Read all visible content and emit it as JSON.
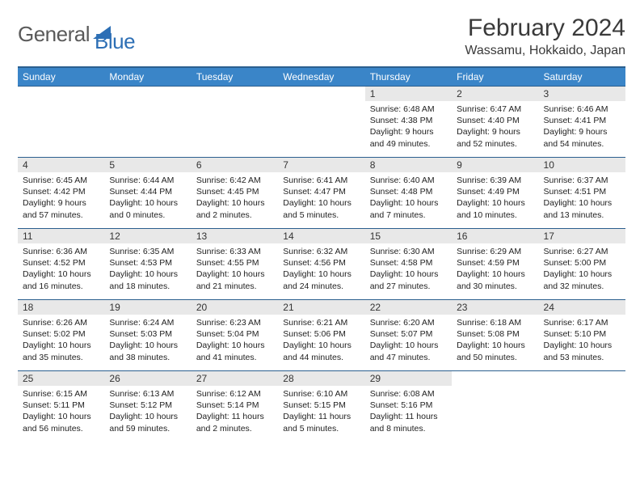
{
  "brand": {
    "part1": "General",
    "part2": "Blue"
  },
  "title": {
    "month": "February 2024",
    "location": "Wassamu, Hokkaido, Japan"
  },
  "weekdays": [
    "Sunday",
    "Monday",
    "Tuesday",
    "Wednesday",
    "Thursday",
    "Friday",
    "Saturday"
  ],
  "colors": {
    "header_bg": "#3a85c8",
    "header_border": "#2b5f8f",
    "daynum_bg": "#e8e8e8"
  },
  "days": [
    {
      "n": "1",
      "sr": "Sunrise: 6:48 AM",
      "ss": "Sunset: 4:38 PM",
      "dl": "Daylight: 9 hours and 49 minutes."
    },
    {
      "n": "2",
      "sr": "Sunrise: 6:47 AM",
      "ss": "Sunset: 4:40 PM",
      "dl": "Daylight: 9 hours and 52 minutes."
    },
    {
      "n": "3",
      "sr": "Sunrise: 6:46 AM",
      "ss": "Sunset: 4:41 PM",
      "dl": "Daylight: 9 hours and 54 minutes."
    },
    {
      "n": "4",
      "sr": "Sunrise: 6:45 AM",
      "ss": "Sunset: 4:42 PM",
      "dl": "Daylight: 9 hours and 57 minutes."
    },
    {
      "n": "5",
      "sr": "Sunrise: 6:44 AM",
      "ss": "Sunset: 4:44 PM",
      "dl": "Daylight: 10 hours and 0 minutes."
    },
    {
      "n": "6",
      "sr": "Sunrise: 6:42 AM",
      "ss": "Sunset: 4:45 PM",
      "dl": "Daylight: 10 hours and 2 minutes."
    },
    {
      "n": "7",
      "sr": "Sunrise: 6:41 AM",
      "ss": "Sunset: 4:47 PM",
      "dl": "Daylight: 10 hours and 5 minutes."
    },
    {
      "n": "8",
      "sr": "Sunrise: 6:40 AM",
      "ss": "Sunset: 4:48 PM",
      "dl": "Daylight: 10 hours and 7 minutes."
    },
    {
      "n": "9",
      "sr": "Sunrise: 6:39 AM",
      "ss": "Sunset: 4:49 PM",
      "dl": "Daylight: 10 hours and 10 minutes."
    },
    {
      "n": "10",
      "sr": "Sunrise: 6:37 AM",
      "ss": "Sunset: 4:51 PM",
      "dl": "Daylight: 10 hours and 13 minutes."
    },
    {
      "n": "11",
      "sr": "Sunrise: 6:36 AM",
      "ss": "Sunset: 4:52 PM",
      "dl": "Daylight: 10 hours and 16 minutes."
    },
    {
      "n": "12",
      "sr": "Sunrise: 6:35 AM",
      "ss": "Sunset: 4:53 PM",
      "dl": "Daylight: 10 hours and 18 minutes."
    },
    {
      "n": "13",
      "sr": "Sunrise: 6:33 AM",
      "ss": "Sunset: 4:55 PM",
      "dl": "Daylight: 10 hours and 21 minutes."
    },
    {
      "n": "14",
      "sr": "Sunrise: 6:32 AM",
      "ss": "Sunset: 4:56 PM",
      "dl": "Daylight: 10 hours and 24 minutes."
    },
    {
      "n": "15",
      "sr": "Sunrise: 6:30 AM",
      "ss": "Sunset: 4:58 PM",
      "dl": "Daylight: 10 hours and 27 minutes."
    },
    {
      "n": "16",
      "sr": "Sunrise: 6:29 AM",
      "ss": "Sunset: 4:59 PM",
      "dl": "Daylight: 10 hours and 30 minutes."
    },
    {
      "n": "17",
      "sr": "Sunrise: 6:27 AM",
      "ss": "Sunset: 5:00 PM",
      "dl": "Daylight: 10 hours and 32 minutes."
    },
    {
      "n": "18",
      "sr": "Sunrise: 6:26 AM",
      "ss": "Sunset: 5:02 PM",
      "dl": "Daylight: 10 hours and 35 minutes."
    },
    {
      "n": "19",
      "sr": "Sunrise: 6:24 AM",
      "ss": "Sunset: 5:03 PM",
      "dl": "Daylight: 10 hours and 38 minutes."
    },
    {
      "n": "20",
      "sr": "Sunrise: 6:23 AM",
      "ss": "Sunset: 5:04 PM",
      "dl": "Daylight: 10 hours and 41 minutes."
    },
    {
      "n": "21",
      "sr": "Sunrise: 6:21 AM",
      "ss": "Sunset: 5:06 PM",
      "dl": "Daylight: 10 hours and 44 minutes."
    },
    {
      "n": "22",
      "sr": "Sunrise: 6:20 AM",
      "ss": "Sunset: 5:07 PM",
      "dl": "Daylight: 10 hours and 47 minutes."
    },
    {
      "n": "23",
      "sr": "Sunrise: 6:18 AM",
      "ss": "Sunset: 5:08 PM",
      "dl": "Daylight: 10 hours and 50 minutes."
    },
    {
      "n": "24",
      "sr": "Sunrise: 6:17 AM",
      "ss": "Sunset: 5:10 PM",
      "dl": "Daylight: 10 hours and 53 minutes."
    },
    {
      "n": "25",
      "sr": "Sunrise: 6:15 AM",
      "ss": "Sunset: 5:11 PM",
      "dl": "Daylight: 10 hours and 56 minutes."
    },
    {
      "n": "26",
      "sr": "Sunrise: 6:13 AM",
      "ss": "Sunset: 5:12 PM",
      "dl": "Daylight: 10 hours and 59 minutes."
    },
    {
      "n": "27",
      "sr": "Sunrise: 6:12 AM",
      "ss": "Sunset: 5:14 PM",
      "dl": "Daylight: 11 hours and 2 minutes."
    },
    {
      "n": "28",
      "sr": "Sunrise: 6:10 AM",
      "ss": "Sunset: 5:15 PM",
      "dl": "Daylight: 11 hours and 5 minutes."
    },
    {
      "n": "29",
      "sr": "Sunrise: 6:08 AM",
      "ss": "Sunset: 5:16 PM",
      "dl": "Daylight: 11 hours and 8 minutes."
    }
  ],
  "layout": {
    "first_day_col": 4,
    "rows": 5,
    "cols": 7
  }
}
